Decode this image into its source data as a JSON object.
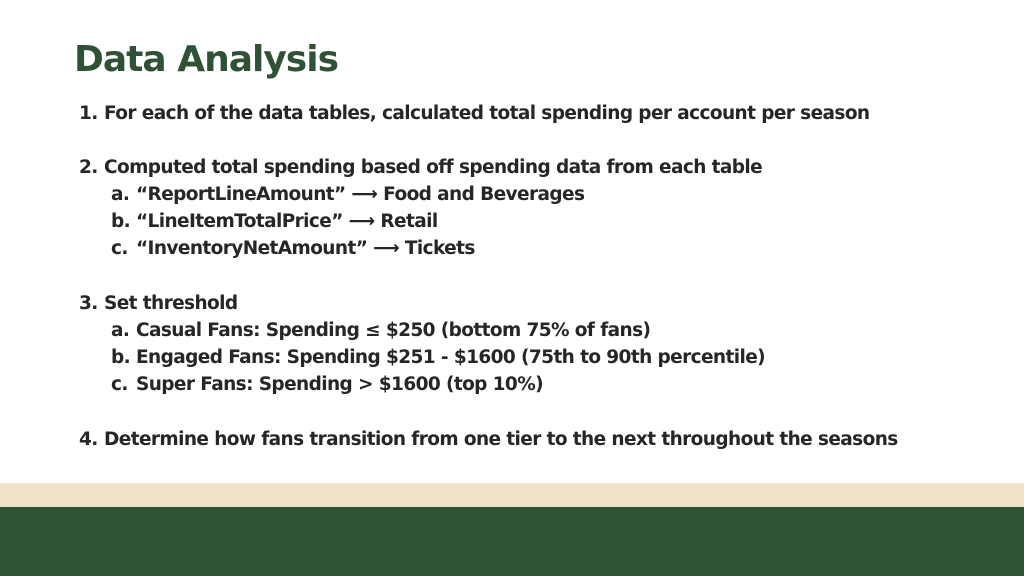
{
  "title": "Data Analysis",
  "colors": {
    "title": "#2f5236",
    "text": "#262626",
    "cream_band": "#efe3c7",
    "green_band": "#2e5236"
  },
  "items": [
    {
      "marker": "1.",
      "text": "For each of the data tables, calculated total spending per account per season",
      "subitems": []
    },
    {
      "marker": "2.",
      "text": "Computed total spending based off spending data from each table",
      "subitems": [
        {
          "marker": "a.",
          "text": "“ReportLineAmount” ⟶ Food and Beverages"
        },
        {
          "marker": "b.",
          "text": "“LineItemTotalPrice” ⟶ Retail"
        },
        {
          "marker": "c.",
          "text": "“InventoryNetAmount” ⟶ Tickets"
        }
      ]
    },
    {
      "marker": "3.",
      "text": "Set threshold",
      "subitems": [
        {
          "marker": "a.",
          "text": "Casual Fans: Spending ≤ $250 (bottom 75% of fans)"
        },
        {
          "marker": "b.",
          "text": "Engaged Fans: Spending $251 - $1600 (75th to 90th percentile)"
        },
        {
          "marker": "c.",
          "text": "Super Fans: Spending > $1600 (top 10%)"
        }
      ]
    },
    {
      "marker": "4.",
      "text": "Determine how fans transition from one tier to the next throughout the seasons",
      "subitems": []
    }
  ]
}
